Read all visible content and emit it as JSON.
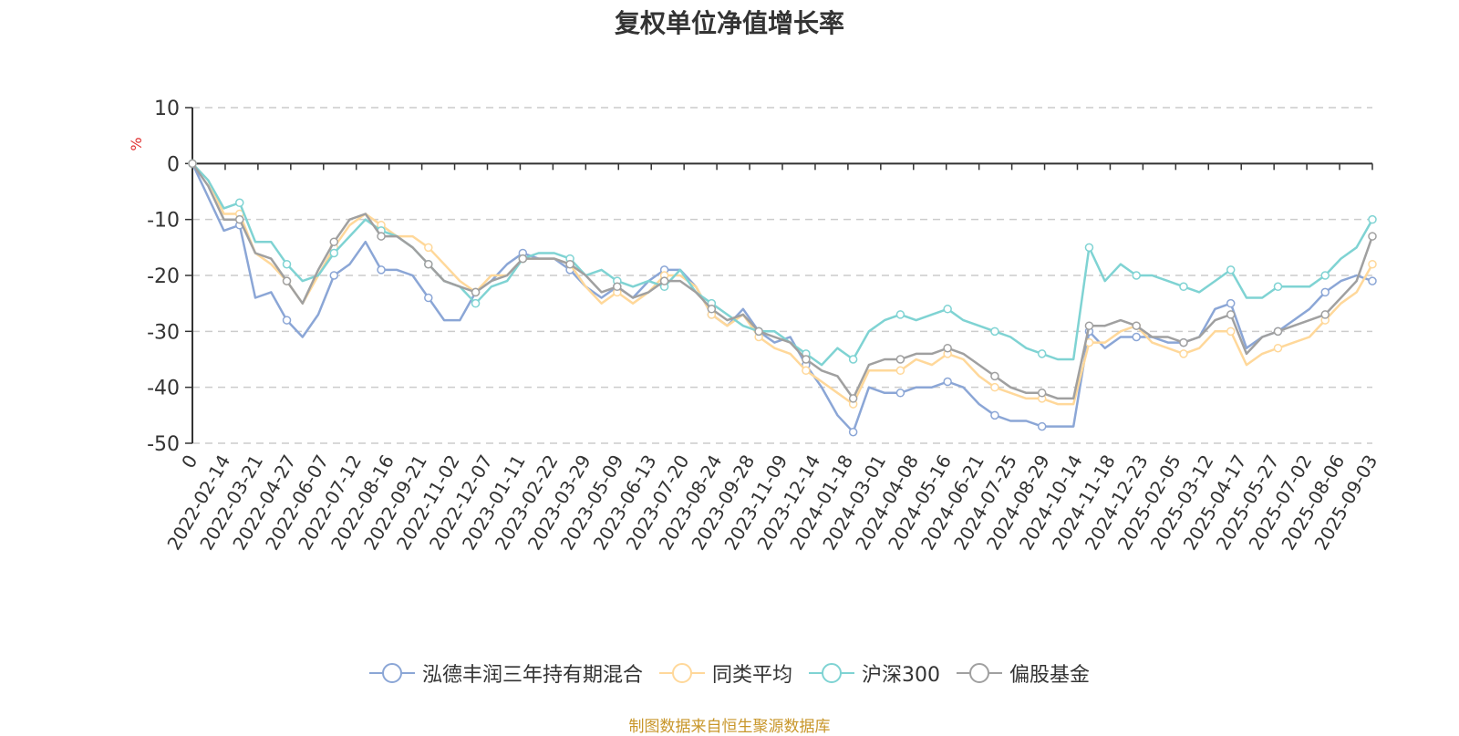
{
  "chart_data": {
    "type": "line",
    "title": "复权单位净值增长率",
    "ylabel": "%",
    "ylim": [
      -50,
      10
    ],
    "yticks": [
      10,
      0,
      -10,
      -20,
      -30,
      -40,
      -50
    ],
    "grid": true,
    "legend_position": "bottom",
    "xtick_labels": [
      "0",
      "2022-02-14",
      "2022-03-21",
      "2022-04-27",
      "2022-06-07",
      "2022-07-12",
      "2022-08-16",
      "2022-09-21",
      "2022-11-02",
      "2022-12-07",
      "2023-01-11",
      "2023-02-22",
      "2023-03-29",
      "2023-05-09",
      "2023-06-13",
      "2023-07-20",
      "2023-08-24",
      "2023-09-28",
      "2023-11-09",
      "2023-12-14",
      "2024-01-18",
      "2024-03-01",
      "2024-04-08",
      "2024-05-16",
      "2024-06-21",
      "2024-07-25",
      "2024-08-29",
      "2024-10-14",
      "2024-11-18",
      "2024-12-23",
      "2025-02-05",
      "2025-03-12",
      "2025-04-17",
      "2025-05-27",
      "2025-07-02",
      "2025-08-06",
      "2025-09-03"
    ],
    "series": [
      {
        "name": "泓德丰润三年持有期混合",
        "color": "#8ba6d6",
        "values": [
          0,
          -6,
          -12,
          -11,
          -24,
          -23,
          -28,
          -31,
          -27,
          -20,
          -18,
          -14,
          -19,
          -19,
          -20,
          -24,
          -28,
          -28,
          -23,
          -21,
          -18,
          -16,
          -17,
          -17,
          -19,
          -22,
          -24,
          -22,
          -24,
          -21,
          -19,
          -19,
          -22,
          -27,
          -29,
          -26,
          -30,
          -32,
          -31,
          -36,
          -40,
          -45,
          -48,
          -40,
          -41,
          -41,
          -40,
          -40,
          -39,
          -40,
          -43,
          -45,
          -46,
          -46,
          -47,
          -47,
          -47,
          -30,
          -33,
          -31,
          -31,
          -31,
          -32,
          -32,
          -31,
          -26,
          -25,
          -33,
          -31,
          -30,
          -28,
          -26,
          -23,
          -21,
          -20,
          -21
        ]
      },
      {
        "name": "同类平均",
        "color": "#ffd89a",
        "values": [
          0,
          -3,
          -9,
          -9,
          -16,
          -18,
          -21,
          -25,
          -20,
          -15,
          -11,
          -9,
          -11,
          -13,
          -13,
          -15,
          -18,
          -21,
          -23,
          -20,
          -20,
          -17,
          -17,
          -17,
          -18,
          -22,
          -25,
          -23,
          -25,
          -23,
          -20,
          -20,
          -22,
          -27,
          -29,
          -27,
          -31,
          -33,
          -34,
          -37,
          -39,
          -41,
          -43,
          -37,
          -37,
          -37,
          -35,
          -36,
          -34,
          -35,
          -38,
          -40,
          -41,
          -42,
          -42,
          -43,
          -43,
          -32,
          -32,
          -30,
          -29,
          -32,
          -33,
          -34,
          -33,
          -30,
          -30,
          -36,
          -34,
          -33,
          -32,
          -31,
          -28,
          -25,
          -23,
          -18
        ]
      },
      {
        "name": "沪深300",
        "color": "#7fd3d3",
        "values": [
          0,
          -3,
          -8,
          -7,
          -14,
          -14,
          -18,
          -21,
          -20,
          -16,
          -13,
          -10,
          -12,
          -13,
          -15,
          -18,
          -21,
          -22,
          -25,
          -22,
          -21,
          -17,
          -16,
          -16,
          -17,
          -20,
          -19,
          -21,
          -22,
          -21,
          -22,
          -19,
          -23,
          -25,
          -27,
          -29,
          -30,
          -30,
          -32,
          -34,
          -36,
          -33,
          -35,
          -30,
          -28,
          -27,
          -28,
          -27,
          -26,
          -28,
          -29,
          -30,
          -31,
          -33,
          -34,
          -35,
          -35,
          -15,
          -21,
          -18,
          -20,
          -20,
          -21,
          -22,
          -23,
          -21,
          -19,
          -24,
          -24,
          -22,
          -22,
          -22,
          -20,
          -17,
          -15,
          -10
        ]
      },
      {
        "name": "偏股基金",
        "color": "#a0a0a0",
        "values": [
          0,
          -4,
          -10,
          -10,
          -16,
          -17,
          -21,
          -25,
          -19,
          -14,
          -10,
          -9,
          -13,
          -13,
          -15,
          -18,
          -21,
          -22,
          -23,
          -21,
          -20,
          -17,
          -17,
          -17,
          -18,
          -20,
          -23,
          -22,
          -24,
          -23,
          -21,
          -21,
          -23,
          -26,
          -28,
          -27,
          -30,
          -31,
          -32,
          -35,
          -37,
          -38,
          -42,
          -36,
          -35,
          -35,
          -34,
          -34,
          -33,
          -34,
          -36,
          -38,
          -40,
          -41,
          -41,
          -42,
          -42,
          -29,
          -29,
          -28,
          -29,
          -31,
          -31,
          -32,
          -31,
          -28,
          -27,
          -34,
          -31,
          -30,
          -29,
          -28,
          -27,
          -24,
          -21,
          -13
        ]
      }
    ]
  },
  "source_note": "制图数据来自恒生聚源数据库"
}
